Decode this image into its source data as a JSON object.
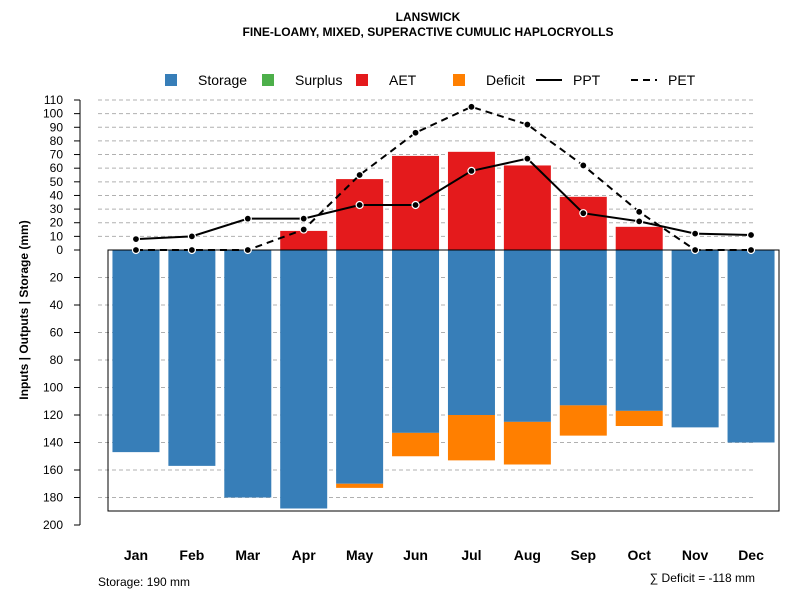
{
  "chart_data": {
    "type": "bar",
    "title": "LANSWICK",
    "subtitle": "FINE-LOAMY, MIXED, SUPERACTIVE CUMULIC HAPLOCRYOLLS",
    "ylabel": "Inputs | Outputs | Storage     (mm)",
    "categories": [
      "Jan",
      "Feb",
      "Mar",
      "Apr",
      "May",
      "Jun",
      "Jul",
      "Aug",
      "Sep",
      "Oct",
      "Nov",
      "Dec"
    ],
    "upper_ticks": [
      "110",
      "100",
      "90",
      "80",
      "70",
      "60",
      "50",
      "40",
      "30",
      "20",
      "10",
      "0"
    ],
    "lower_ticks": [
      "20",
      "40",
      "60",
      "80",
      "100",
      "120",
      "140",
      "160",
      "180",
      "200"
    ],
    "upper_range": [
      0,
      110
    ],
    "lower_range": [
      0,
      200
    ],
    "legend": [
      {
        "label": "Storage",
        "type": "square",
        "color": "#377EB8"
      },
      {
        "label": "Surplus",
        "type": "square",
        "color": "#4DAF4A"
      },
      {
        "label": "AET",
        "type": "square",
        "color": "#E41A1C"
      },
      {
        "label": "Deficit",
        "type": "square",
        "color": "#FF7F00"
      },
      {
        "label": "PPT",
        "type": "solid-line",
        "color": "#000000"
      },
      {
        "label": "PET",
        "type": "dashed-line",
        "color": "#000000"
      }
    ],
    "series": [
      {
        "name": "Storage",
        "color": "#377EB8",
        "values": [
          147,
          157,
          180,
          188,
          170,
          133,
          120,
          125,
          113,
          117,
          129,
          140
        ]
      },
      {
        "name": "Deficit",
        "color": "#FF7F00",
        "values": [
          0,
          0,
          0,
          0,
          3,
          17,
          33,
          31,
          22,
          11,
          0,
          0
        ]
      },
      {
        "name": "AET",
        "color": "#E41A1C",
        "values": [
          0,
          0,
          0,
          14,
          52,
          69,
          72,
          62,
          39,
          17,
          0,
          0
        ]
      },
      {
        "name": "Surplus",
        "color": "#4DAF4A",
        "values": [
          0,
          0,
          0,
          0,
          0,
          0,
          0,
          0,
          0,
          0,
          0,
          0
        ]
      },
      {
        "name": "PPT",
        "color": "#000000",
        "values": [
          8,
          10,
          23,
          23,
          33,
          33,
          58,
          67,
          27,
          21,
          12,
          11
        ]
      },
      {
        "name": "PET",
        "color": "#000000",
        "values": [
          0,
          0,
          0,
          15,
          55,
          86,
          105,
          92,
          62,
          28,
          0,
          0
        ]
      }
    ],
    "storage_capacity": 190,
    "footer_left": "Storage: 190 mm",
    "footer_right": "∑ Deficit = -118 mm"
  }
}
